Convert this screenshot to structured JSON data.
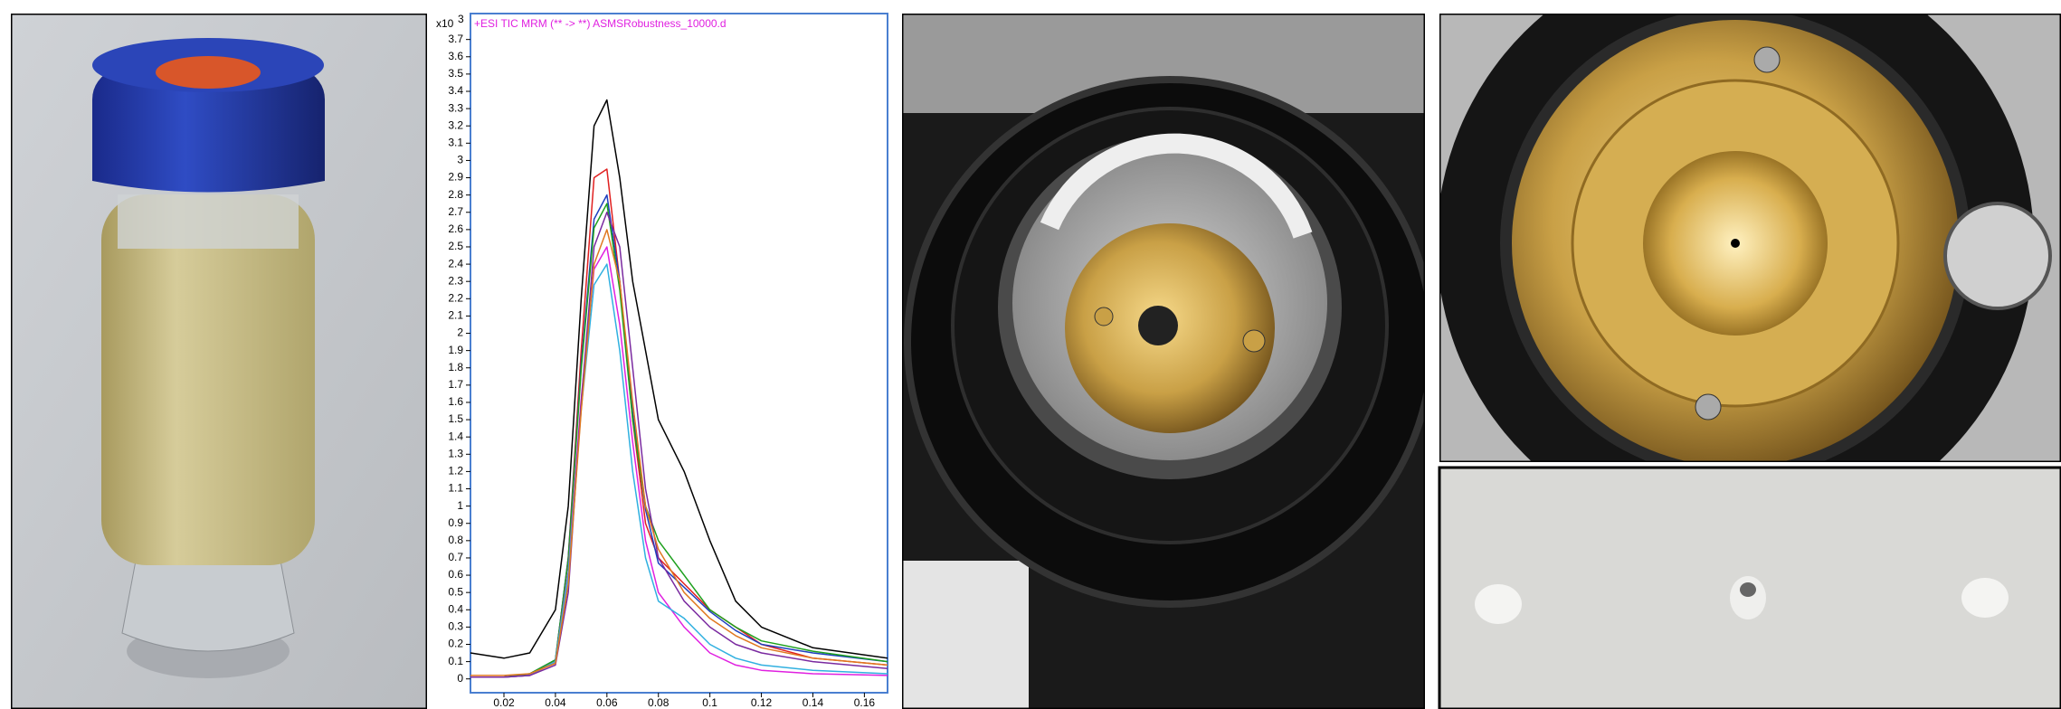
{
  "chart_data": {
    "type": "line",
    "title": "+ESI TIC MRM (** -> **) ASMSRobustness_10000.d",
    "y_multiplier": "x10",
    "y_multiplier_exp": "3",
    "x": [
      0.007,
      0.02,
      0.03,
      0.04,
      0.045,
      0.05,
      0.055,
      0.06,
      0.065,
      0.07,
      0.075,
      0.08,
      0.09,
      0.1,
      0.11,
      0.12,
      0.14,
      0.169
    ],
    "series": [
      {
        "color": "#000000",
        "values": [
          0.15,
          0.12,
          0.15,
          0.4,
          1.0,
          2.2,
          3.2,
          3.35,
          2.9,
          2.3,
          1.9,
          1.5,
          1.2,
          0.8,
          0.45,
          0.3,
          0.18,
          0.12
        ]
      },
      {
        "color": "#e02020",
        "values": [
          0.01,
          0.01,
          0.02,
          0.1,
          0.7,
          1.9,
          2.9,
          2.95,
          2.3,
          1.5,
          0.9,
          0.7,
          0.55,
          0.4,
          0.3,
          0.2,
          0.12,
          0.08
        ]
      },
      {
        "color": "#1f3fbf",
        "values": [
          0.01,
          0.01,
          0.03,
          0.11,
          0.7,
          1.82,
          2.66,
          2.8,
          2.3,
          1.54,
          0.98,
          0.67,
          0.53,
          0.39,
          0.28,
          0.2,
          0.15,
          0.1
        ]
      },
      {
        "color": "#1ea01e",
        "values": [
          0.01,
          0.01,
          0.03,
          0.11,
          0.69,
          1.79,
          2.61,
          2.75,
          2.25,
          1.5,
          1.0,
          0.8,
          0.6,
          0.4,
          0.3,
          0.22,
          0.16,
          0.1
        ]
      },
      {
        "color": "#e020e0",
        "values": [
          0.01,
          0.01,
          0.02,
          0.1,
          0.62,
          1.62,
          2.37,
          2.5,
          2.05,
          1.37,
          0.8,
          0.5,
          0.3,
          0.15,
          0.08,
          0.05,
          0.03,
          0.02
        ]
      },
      {
        "color": "#30b0e0",
        "values": [
          0.01,
          0.01,
          0.02,
          0.1,
          0.6,
          1.56,
          2.28,
          2.4,
          1.9,
          1.2,
          0.7,
          0.45,
          0.35,
          0.2,
          0.12,
          0.08,
          0.05,
          0.03
        ]
      },
      {
        "color": "#7a2aa0",
        "values": [
          0.01,
          0.01,
          0.02,
          0.08,
          0.5,
          1.6,
          2.5,
          2.7,
          2.5,
          1.8,
          1.1,
          0.7,
          0.45,
          0.3,
          0.2,
          0.15,
          0.1,
          0.06
        ]
      },
      {
        "color": "#e07820",
        "values": [
          0.02,
          0.02,
          0.03,
          0.09,
          0.55,
          1.55,
          2.4,
          2.6,
          2.3,
          1.6,
          1.0,
          0.75,
          0.5,
          0.35,
          0.25,
          0.18,
          0.12,
          0.08
        ]
      }
    ],
    "xlim": [
      0.007,
      0.169
    ],
    "ylim": [
      -0.08,
      3.85
    ],
    "xticks": [
      0.02,
      0.04,
      0.06,
      0.08,
      0.1,
      0.12,
      0.14,
      0.16
    ],
    "yticks": [
      0,
      0.1,
      0.2,
      0.3,
      0.4,
      0.5,
      0.6,
      0.7,
      0.8,
      0.9,
      1,
      1.1,
      1.2,
      1.3,
      1.4,
      1.5,
      1.6,
      1.7,
      1.8,
      1.9,
      2,
      2.1,
      2.2,
      2.3,
      2.4,
      2.5,
      2.6,
      2.7,
      2.8,
      2.9,
      3,
      3.1,
      3.2,
      3.3,
      3.4,
      3.5,
      3.6,
      3.7
    ],
    "title_color": "#e020e0",
    "frame_color": "#4a7fd0"
  }
}
